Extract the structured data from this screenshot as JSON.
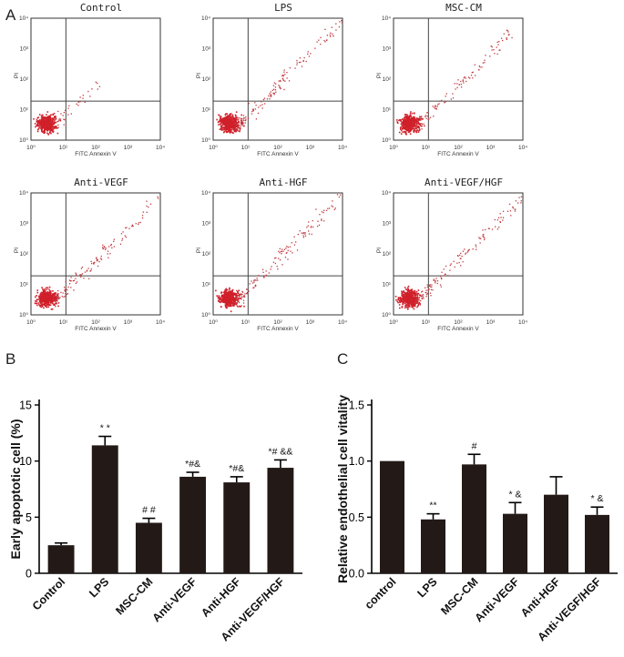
{
  "panel_labels": {
    "a": "A",
    "b": "B",
    "c": "C"
  },
  "flow": {
    "x_axis_label": "FITC Annexin V",
    "y_axis_label": "PI",
    "ticks": [
      "10⁰",
      "10¹",
      "10²",
      "10³",
      "10⁴"
    ],
    "panels": [
      {
        "title": "Control",
        "upper_spread": 0
      },
      {
        "title": "LPS",
        "upper_spread": 1
      },
      {
        "title": "MSC-CM",
        "upper_spread": 0.7
      },
      {
        "title": "Anti-VEGF",
        "upper_spread": 0.8
      },
      {
        "title": "Anti-HGF",
        "upper_spread": 0.85
      },
      {
        "title": "Anti-VEGF/HGF",
        "upper_spread": 0.85
      }
    ]
  },
  "chart_data": [
    {
      "type": "bar",
      "id": "B",
      "title": "",
      "xlabel": "",
      "ylabel": "Early apoptotic cell (%)",
      "ylim": [
        0,
        15
      ],
      "yticks": [
        "0",
        "5",
        "10",
        "15"
      ],
      "categories": [
        "Control",
        "LPS",
        "MSC-CM",
        "Anti-VEGF",
        "Anti-HGF",
        "Anti-VEGF/HGF"
      ],
      "values": [
        2.5,
        11.4,
        4.5,
        8.6,
        8.1,
        9.4
      ],
      "errors": [
        0.2,
        0.8,
        0.4,
        0.4,
        0.5,
        0.7
      ],
      "annotations": [
        "",
        "* *",
        "# #",
        "*#&",
        "*#&",
        "*# &&"
      ],
      "bar_color": "#231a18"
    },
    {
      "type": "bar",
      "id": "C",
      "title": "",
      "xlabel": "",
      "ylabel": "Relative endothelial cell vitality",
      "ylim": [
        0,
        1.5
      ],
      "yticks": [
        "0.0",
        "0.5",
        "1.0",
        "1.5"
      ],
      "categories": [
        "control",
        "LPS",
        "MSC-CM",
        "Anti-VEGF",
        "Anti-HGF",
        "Anti-VEGF/HGF"
      ],
      "values": [
        1.0,
        0.48,
        0.97,
        0.53,
        0.7,
        0.52
      ],
      "errors": [
        0,
        0.05,
        0.09,
        0.1,
        0.16,
        0.07
      ],
      "annotations": [
        "",
        "**",
        "#",
        "* &",
        "",
        "* &"
      ],
      "bar_color": "#231a18"
    }
  ]
}
